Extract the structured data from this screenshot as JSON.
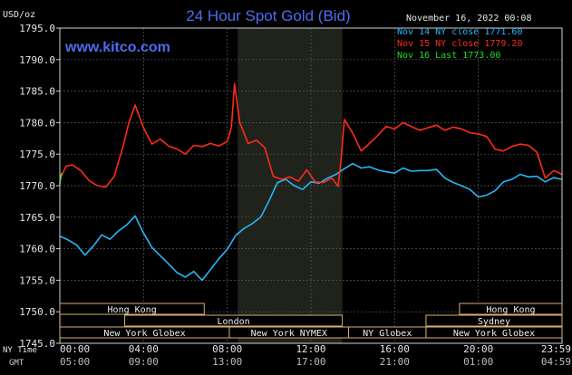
{
  "chart_data": {
    "type": "line",
    "title": "24 Hour Spot Gold (Bid)",
    "watermark": "www.kitco.com",
    "date_label": "November 16, 2022 00:08",
    "ylabel": "USD/oz",
    "ylim": [
      1745,
      1795
    ],
    "y_ticks": [
      "1795.0",
      "1790.0",
      "1785.0",
      "1780.0",
      "1775.0",
      "1770.0",
      "1765.0",
      "1760.0",
      "1755.0",
      "1750.0",
      "1745.0"
    ],
    "x_ticks_ny": [
      "00:00",
      "04:00",
      "08:00",
      "12:00",
      "16:00",
      "20:00",
      "23:59"
    ],
    "x_ticks_gmt": [
      "05:00",
      "09:00",
      "13:00",
      "17:00",
      "21:00",
      "01:00",
      "04:59"
    ],
    "time_row_label": "NY Time",
    "gmt_row_label": "GMT",
    "xlim_hours": [
      0,
      24
    ],
    "shaded_region_hours": [
      8.5,
      13.5
    ],
    "grid": true,
    "legend_position": "top-right",
    "colors": {
      "nov14": "#29b6f6",
      "nov15": "#ff2a1a",
      "nov16": "#22dd22",
      "grid": "#5a5a5a",
      "frame": "#cfcfcf",
      "title": "#4d6cf0",
      "shade": "#1f231c",
      "session": "#d8b070",
      "session_text": "#f0f0f0"
    },
    "series": [
      {
        "name": "Nov 14 NY close 1771.60",
        "color": "#29b6f6",
        "x": [
          0,
          0.4,
          0.8,
          1.2,
          1.6,
          2.0,
          2.4,
          2.8,
          3.2,
          3.6,
          4.0,
          4.4,
          4.8,
          5.2,
          5.6,
          6.0,
          6.4,
          6.8,
          7.2,
          7.6,
          8.0,
          8.4,
          8.8,
          9.2,
          9.6,
          10.0,
          10.4,
          10.8,
          11.2,
          11.6,
          12.0,
          12.4,
          12.8,
          13.2,
          13.6,
          14.0,
          14.4,
          14.8,
          15.2,
          15.6,
          16.0,
          16.4,
          16.8,
          17.2,
          17.6,
          18.0,
          18.4,
          18.8,
          19.2,
          19.6,
          20.0,
          20.4,
          20.8,
          21.2,
          21.6,
          22.0,
          22.4,
          22.8,
          23.2,
          23.6,
          23.99
        ],
        "values": [
          1762.0,
          1761.4,
          1760.6,
          1759.0,
          1760.4,
          1762.2,
          1761.5,
          1762.8,
          1763.8,
          1765.2,
          1762.5,
          1760.2,
          1758.9,
          1757.6,
          1756.2,
          1755.5,
          1756.4,
          1755.0,
          1756.7,
          1758.4,
          1759.9,
          1762.1,
          1763.2,
          1764.0,
          1765.0,
          1767.6,
          1770.5,
          1771.0,
          1770.0,
          1769.4,
          1770.6,
          1770.4,
          1771.2,
          1771.8,
          1772.7,
          1773.5,
          1772.8,
          1773.0,
          1772.5,
          1772.2,
          1772.0,
          1772.8,
          1772.3,
          1772.4,
          1772.4,
          1772.6,
          1771.2,
          1770.5,
          1770.0,
          1769.4,
          1768.2,
          1768.5,
          1769.2,
          1770.6,
          1771.0,
          1771.8,
          1771.4,
          1771.5,
          1770.6,
          1771.3,
          1771.0
        ]
      },
      {
        "name": "Nov 15 NY close 1779.20",
        "color": "#ff2a1a",
        "x": [
          0,
          0.3,
          0.6,
          1.0,
          1.4,
          1.8,
          2.2,
          2.6,
          3.0,
          3.3,
          3.6,
          4.0,
          4.4,
          4.8,
          5.2,
          5.6,
          6.0,
          6.4,
          6.8,
          7.2,
          7.6,
          8.0,
          8.2,
          8.35,
          8.6,
          9.0,
          9.4,
          9.8,
          10.2,
          10.6,
          11.0,
          11.4,
          11.8,
          12.2,
          12.6,
          13.0,
          13.3,
          13.45,
          13.6,
          14.0,
          14.4,
          14.8,
          15.2,
          15.6,
          16.0,
          16.4,
          16.8,
          17.2,
          17.6,
          18.0,
          18.4,
          18.8,
          19.2,
          19.6,
          20.0,
          20.4,
          20.8,
          21.2,
          21.6,
          22.0,
          22.4,
          22.8,
          23.2,
          23.6,
          23.99
        ],
        "values": [
          1771.0,
          1773.1,
          1773.3,
          1772.4,
          1770.8,
          1770.0,
          1769.8,
          1771.5,
          1776.0,
          1780.0,
          1782.8,
          1779.2,
          1776.6,
          1777.4,
          1776.3,
          1775.8,
          1775.0,
          1776.4,
          1776.2,
          1776.7,
          1776.3,
          1777.0,
          1779.3,
          1786.2,
          1780.0,
          1776.7,
          1777.2,
          1776.0,
          1771.5,
          1771.0,
          1771.4,
          1770.7,
          1772.5,
          1770.6,
          1770.5,
          1771.2,
          1769.9,
          1774.5,
          1780.5,
          1778.3,
          1775.5,
          1776.7,
          1778.0,
          1779.4,
          1779.0,
          1780.0,
          1779.4,
          1778.8,
          1779.2,
          1779.6,
          1778.8,
          1779.3,
          1779.0,
          1778.4,
          1778.2,
          1777.8,
          1775.8,
          1775.5,
          1776.2,
          1776.6,
          1776.4,
          1775.3,
          1771.2,
          1772.4,
          1771.8
        ]
      },
      {
        "name": "Nov 16 Last 1773.00",
        "color": "#22dd22",
        "x": [
          0,
          0.05,
          0.1
        ],
        "values": [
          1770.2,
          1771.6,
          1772.0
        ]
      }
    ],
    "sessions": [
      {
        "label": "Hong Kong",
        "x0": 0,
        "x1": 6.9,
        "row": 0
      },
      {
        "label": "Hong Kong",
        "x0": 19.1,
        "x1": 24,
        "row": 0
      },
      {
        "label": "London",
        "x0": 3.1,
        "x1": 13.5,
        "row": 1
      },
      {
        "label": "Sydney",
        "x0": 17.5,
        "x1": 24,
        "row": 1
      },
      {
        "label": "New York Globex",
        "x0": 0,
        "x1": 8.1,
        "row": 2
      },
      {
        "label": "New York NYMEX",
        "x0": 8.1,
        "x1": 13.8,
        "row": 2
      },
      {
        "label": "NY Globex",
        "x0": 13.8,
        "x1": 17.5,
        "row": 2
      },
      {
        "label": "New York Globex",
        "x0": 17.5,
        "x1": 24,
        "row": 2
      }
    ]
  }
}
